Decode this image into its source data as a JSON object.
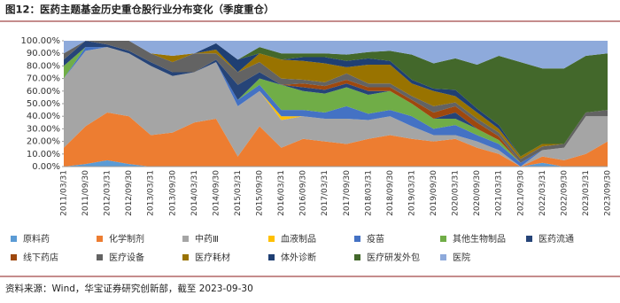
{
  "chart_data": {
    "type": "stacked_area_100",
    "title": "图12：医药主题基金历史重仓股行业分布变化（季度重仓）",
    "source": "资料来源：Wind，华宝证券研究创新部，截至 2023-09-30",
    "categories": [
      "2011/03/31",
      "2011/09/30",
      "2012/03/31",
      "2012/09/30",
      "2013/03/31",
      "2013/09/30",
      "2014/03/31",
      "2014/09/30",
      "2015/03/31",
      "2015/09/30",
      "2016/03/31",
      "2016/09/30",
      "2017/03/31",
      "2017/09/30",
      "2018/03/31",
      "2018/09/30",
      "2019/03/31",
      "2019/09/30",
      "2020/03/31",
      "2020/09/30",
      "2021/03/31",
      "2021/09/30",
      "2022/03/31",
      "2022/09/30",
      "2023/03/31",
      "2023/09/30"
    ],
    "ylim": [
      0,
      100
    ],
    "yticks": [
      {
        "value": 0,
        "label": "0.00%"
      },
      {
        "value": 10,
        "label": "10.00%"
      },
      {
        "value": 20,
        "label": "20.00%"
      },
      {
        "value": 30,
        "label": "30.00%"
      },
      {
        "value": 40,
        "label": "40.00%"
      },
      {
        "value": 50,
        "label": "50.00%"
      },
      {
        "value": 60,
        "label": "60.00%"
      },
      {
        "value": 70,
        "label": "70.00%"
      },
      {
        "value": 80,
        "label": "80.00%"
      },
      {
        "value": 90,
        "label": "90.00%"
      },
      {
        "value": 100,
        "label": "100.00%"
      }
    ],
    "series": [
      {
        "name": "原料药",
        "color": "#5b9bd5",
        "values": [
          0,
          2,
          5,
          2,
          0,
          0,
          0,
          0,
          0,
          0,
          0,
          0,
          0,
          0,
          0,
          0,
          0,
          0,
          0,
          0,
          0,
          0,
          3,
          0,
          0,
          0
        ]
      },
      {
        "name": "化学制剂",
        "color": "#ed7d31",
        "values": [
          15,
          30,
          38,
          38,
          25,
          27,
          35,
          38,
          8,
          32,
          15,
          22,
          20,
          18,
          22,
          25,
          22,
          20,
          22,
          15,
          10,
          0,
          5,
          5,
          10,
          20
        ]
      },
      {
        "name": "中药Ⅲ",
        "color": "#a5a5a5",
        "values": [
          55,
          60,
          52,
          50,
          55,
          45,
          40,
          45,
          40,
          28,
          22,
          18,
          18,
          20,
          15,
          15,
          10,
          5,
          3,
          5,
          3,
          0,
          5,
          10,
          30,
          20
        ]
      },
      {
        "name": "血液制品",
        "color": "#ffc000",
        "values": [
          0,
          0,
          0,
          0,
          0,
          0,
          0,
          0,
          0,
          0,
          3,
          0,
          0,
          0,
          0,
          0,
          0,
          0,
          0,
          0,
          0,
          0,
          0,
          0,
          0,
          0
        ]
      },
      {
        "name": "疫苗",
        "color": "#4472c4",
        "values": [
          0,
          3,
          0,
          0,
          0,
          0,
          0,
          0,
          5,
          5,
          5,
          5,
          5,
          10,
          5,
          5,
          8,
          5,
          8,
          5,
          5,
          3,
          0,
          0,
          0,
          0
        ]
      },
      {
        "name": "其他生物制品",
        "color": "#70ad47",
        "values": [
          10,
          0,
          0,
          0,
          0,
          0,
          0,
          0,
          0,
          5,
          20,
          15,
          15,
          15,
          15,
          15,
          10,
          8,
          5,
          5,
          3,
          0,
          0,
          0,
          0,
          0
        ]
      },
      {
        "name": "医药流通",
        "color": "#264478",
        "values": [
          5,
          5,
          2,
          2,
          3,
          3,
          0,
          2,
          12,
          5,
          0,
          3,
          3,
          3,
          3,
          0,
          0,
          0,
          5,
          0,
          0,
          0,
          0,
          0,
          0,
          0
        ]
      },
      {
        "name": "线下药店",
        "color": "#9e480e",
        "values": [
          0,
          0,
          0,
          0,
          0,
          0,
          0,
          0,
          0,
          0,
          0,
          3,
          3,
          3,
          3,
          3,
          3,
          5,
          5,
          5,
          3,
          0,
          0,
          0,
          0,
          0
        ]
      },
      {
        "name": "医疗设备",
        "color": "#636363",
        "values": [
          5,
          0,
          3,
          8,
          7,
          8,
          15,
          5,
          10,
          8,
          5,
          3,
          3,
          5,
          3,
          3,
          3,
          5,
          3,
          3,
          3,
          3,
          3,
          3,
          3,
          5
        ]
      },
      {
        "name": "医疗耗材",
        "color": "#997300",
        "values": [
          0,
          0,
          0,
          0,
          0,
          5,
          0,
          3,
          0,
          7,
          15,
          15,
          15,
          5,
          15,
          15,
          10,
          12,
          5,
          5,
          3,
          2,
          2,
          0,
          0,
          0
        ]
      },
      {
        "name": "体外诊断",
        "color": "#1f3f73",
        "values": [
          0,
          0,
          0,
          0,
          0,
          0,
          0,
          5,
          10,
          0,
          0,
          3,
          5,
          5,
          5,
          3,
          3,
          2,
          5,
          3,
          3,
          0,
          0,
          0,
          0,
          0
        ]
      },
      {
        "name": "医疗研发外包",
        "color": "#43682b",
        "values": [
          0,
          0,
          0,
          0,
          0,
          0,
          0,
          0,
          0,
          5,
          5,
          3,
          3,
          5,
          5,
          8,
          20,
          20,
          25,
          35,
          55,
          75,
          60,
          60,
          45,
          45
        ]
      },
      {
        "name": "医院",
        "color": "#8eaadb",
        "values": [
          10,
          0,
          0,
          0,
          10,
          12,
          10,
          2,
          15,
          5,
          10,
          10,
          10,
          11,
          9,
          8,
          11,
          18,
          14,
          19,
          12,
          17,
          22,
          22,
          12,
          10
        ]
      }
    ]
  }
}
